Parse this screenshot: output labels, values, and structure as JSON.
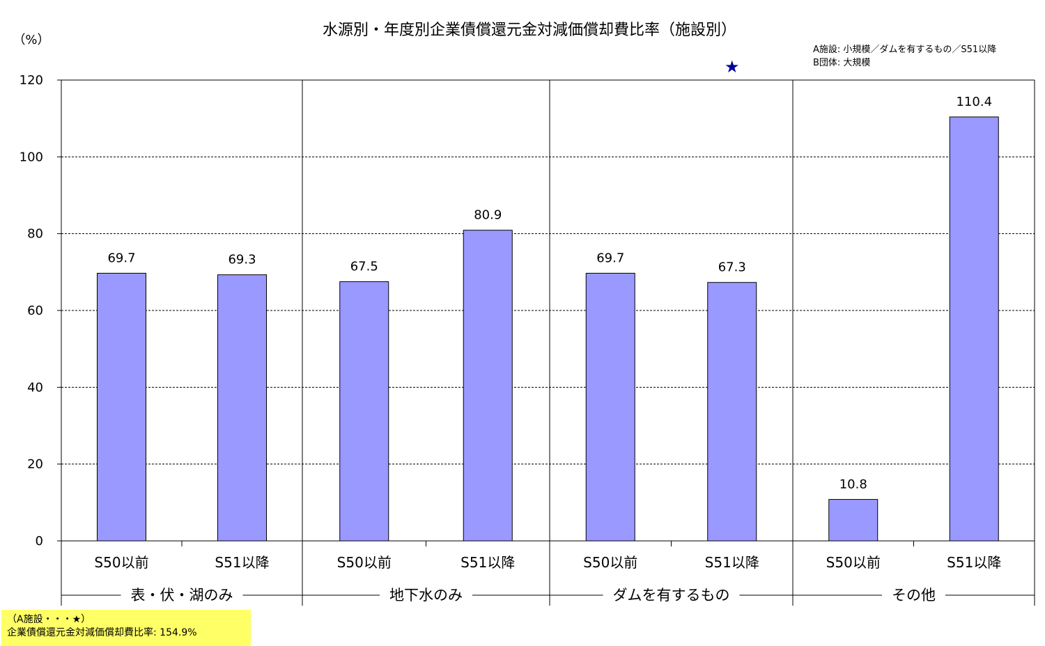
{
  "chart_data": {
    "type": "bar",
    "title": "水源別・年度別企業債償還元金対減価償却費比率（施設別）",
    "ylabel": "（%）",
    "ylim": [
      0,
      120
    ],
    "yticks": [
      0,
      20,
      40,
      60,
      80,
      100,
      120
    ],
    "grid": "horizontal dashed",
    "bar_color": "#9999ff",
    "groups": [
      {
        "name": "表・伏・湖のみ",
        "categories": [
          "S50以前",
          "S51以降"
        ],
        "values": [
          69.7,
          69.3
        ]
      },
      {
        "name": "地下水のみ",
        "categories": [
          "S50以前",
          "S51以降"
        ],
        "values": [
          67.5,
          80.9
        ]
      },
      {
        "name": "ダムを有するもの",
        "categories": [
          "S50以前",
          "S51以降"
        ],
        "values": [
          69.7,
          67.3
        ]
      },
      {
        "name": "その他",
        "categories": [
          "S50以前",
          "S51以降"
        ],
        "values": [
          10.8,
          110.4
        ]
      }
    ],
    "data_labels": [
      "69.7",
      "69.3",
      "67.5",
      "80.9",
      "69.7",
      "67.3",
      "10.8",
      "110.4"
    ],
    "annotation": {
      "marker": "★",
      "marker_color": "#000099",
      "group_index": 2,
      "bar_index": 1,
      "value": 154.9,
      "legend_lines": [
        "A施設: 小規模／ダムを有するもの／S51以降",
        "B団体: 大規模"
      ],
      "footnote_lines": [
        "（A施設・・・★）",
        "企業債償還元金対減価償却費比率: 154.9%"
      ]
    }
  }
}
